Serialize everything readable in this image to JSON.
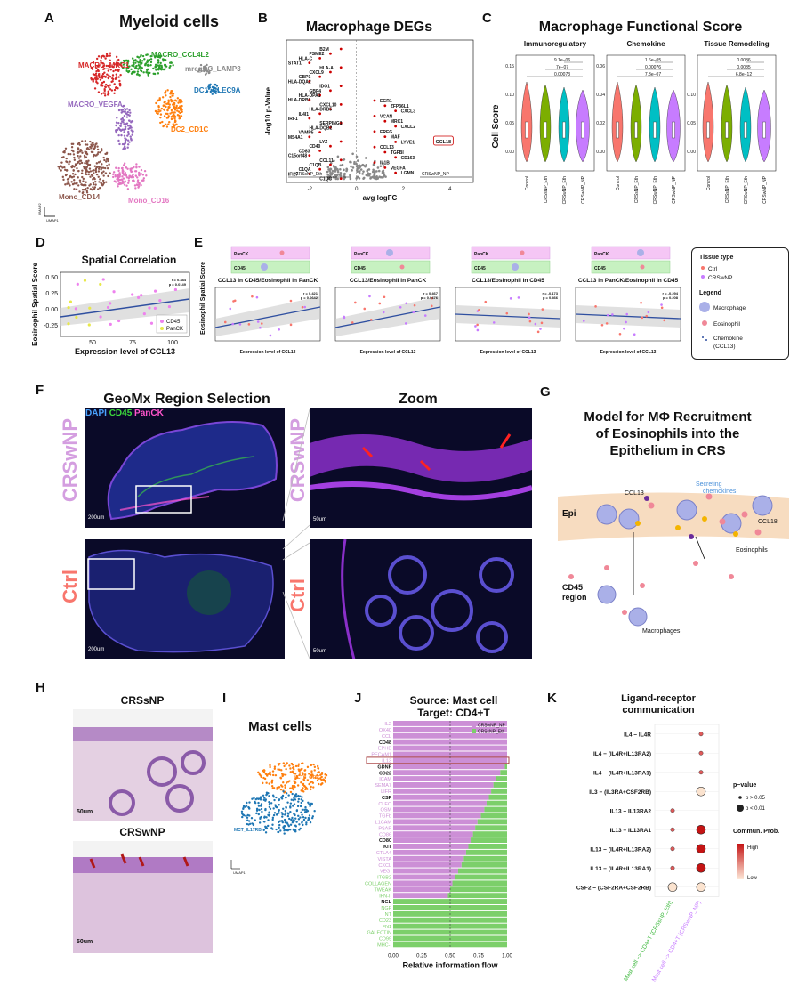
{
  "panels": {
    "A": {
      "label": "A",
      "title": "Myeloid cells",
      "clusters": [
        {
          "name": "MACRO_MRC1",
          "color": "#d62728"
        },
        {
          "name": "MACRO_CCL4L2",
          "color": "#2ca02c"
        },
        {
          "name": "mregDC_LAMP3",
          "color": "#8c8c8c"
        },
        {
          "name": "DC1_CLEC9A",
          "color": "#1f77b4"
        },
        {
          "name": "MACRO_VEGFA",
          "color": "#9467bd"
        },
        {
          "name": "DC2_CD1C",
          "color": "#ff7f0e"
        },
        {
          "name": "Mono_CD16",
          "color": "#e377c2"
        },
        {
          "name": "Mono_CD14",
          "color": "#8c564b"
        }
      ],
      "axis_x": "UMAP1",
      "axis_y": "UMAP2"
    },
    "B": {
      "label": "B",
      "title": "Macrophage DEGs",
      "xlabel": "avg logFC",
      "ylabel": "-log10 p-Value",
      "xticks": [
        "-2",
        "0",
        "2",
        "4"
      ],
      "left_arrow": "CRSsNP_Eth",
      "right_arrow": "CRSwNP_NP",
      "genes_left": [
        "B2M",
        "PSME2",
        "HLA-C",
        "STAT1",
        "HLA-A",
        "CXCL9",
        "GBP1",
        "HLA-DQA2",
        "IDO1",
        "GBP4",
        "HLA-DPA1",
        "HLA-DRB1",
        "CXCL10",
        "HLA-DRB5",
        "IL4I1",
        "IRF1",
        "SERPING1",
        "HLA-DQB2",
        "VAMP5",
        "MS4A1",
        "LYZ",
        "CD40",
        "CD83",
        "C15orf48",
        "CCL11",
        "C1QB",
        "C1QA",
        "IFI27",
        "C1QC"
      ],
      "genes_right": [
        "EGR1",
        "ZFP36L1",
        "CXCL3",
        "VCAN",
        "MRC1",
        "CXCL2",
        "EREG",
        "MAF",
        "LYVE1",
        "CCL13",
        "TGFBI",
        "CD163",
        "IL1B",
        "VEGFA",
        "LGMN"
      ],
      "highlight": "CCL18",
      "highlight2": "CCL13"
    },
    "C": {
      "label": "C",
      "title": "Macrophage Functional Score",
      "ylabel": "Cell Score",
      "groups": [
        "Control",
        "CRSsNP_Eth",
        "CRSwNP_Eth",
        "CRSwNP_NP"
      ],
      "colors": [
        "#f8766d",
        "#7cae00",
        "#00bfc4",
        "#c77cff"
      ],
      "subplots": [
        {
          "name": "Immunoregulatory",
          "yticks": [
            "0.00",
            "0.05",
            "0.10",
            "0.15"
          ],
          "pvals": [
            "9.1e−06",
            "7e−07",
            "0.00073"
          ]
        },
        {
          "name": "Chemokine",
          "yticks": [
            "0.00",
            "0.02",
            "0.04",
            "0.06"
          ],
          "pvals": [
            "1.6e−05",
            "0.00076",
            "7.3e−07"
          ]
        },
        {
          "name": "Tissue Remodeling",
          "yticks": [
            "0.00",
            "0.05",
            "0.10"
          ],
          "pvals": [
            "0.0036",
            "0.0085",
            "6.8e−12"
          ]
        }
      ]
    },
    "D": {
      "label": "D",
      "title": "Spatial Correlation",
      "ylabel": "Eosinophil Spatial Score",
      "xlabel": "Expression level of CCL13",
      "xticks": [
        "50",
        "75",
        "100"
      ],
      "yticks": [
        "0.50",
        "0.25",
        "0.00",
        "-0.25"
      ],
      "stats": "r = 0.384\np = 0.0149",
      "legend": [
        {
          "name": "CD45",
          "color": "#ee82ee"
        },
        {
          "name": "PanCK",
          "color": "#e8e84a"
        }
      ]
    },
    "E": {
      "label": "E",
      "subplots": [
        {
          "title": "CCL13 in CD45/Eosinophil in PanCK",
          "stats": "r = 0.421\np = 0.0642",
          "slope": "up"
        },
        {
          "title": "CCL13/Eosinophil in PanCK",
          "stats": "r = 0.467\np = 0.0476",
          "slope": "up"
        },
        {
          "title": "CCL13/Eosinophil in CD45",
          "stats": "r = -0.173\np = 0.466",
          "slope": "down"
        },
        {
          "title": "CCL13 in PanCK/Eosinophil in CD45",
          "stats": "r = -0.294\np = 0.208",
          "slope": "down"
        }
      ],
      "ylabel": "Eosinophil Spatial Score",
      "xlabel": "Expression level of CCL13",
      "compartments": [
        "PanCK",
        "CD45"
      ],
      "legend": {
        "tissue_title": "Tissue type",
        "items": [
          {
            "name": "Ctrl",
            "color": "#f8766d"
          },
          {
            "name": "CRSwNP",
            "color": "#c77cff"
          }
        ],
        "legend_title": "Legend",
        "cells": [
          "Macrophage",
          "Eosinophil",
          "Chemokine\n(CCL13)"
        ]
      }
    },
    "F": {
      "label": "F",
      "title_left": "GeoMx Region Selection",
      "title_right": "Zoom",
      "channels": [
        {
          "name": "DAPI",
          "color": "#4aa3ff"
        },
        {
          "name": "CD45",
          "color": "#3cdc3c"
        },
        {
          "name": "PanCK",
          "color": "#ff55cc"
        }
      ],
      "rows": [
        "CRSwNP",
        "Ctrl"
      ],
      "scale_big": "200um",
      "scale_small": "50um"
    },
    "G": {
      "label": "G",
      "title": "Model for MΦ Recruitment\nof Eosinophils into the\nEpithelium in CRS",
      "labels": {
        "epi": "Epi",
        "ccl13": "CCL13",
        "secreting": "Secreting\nchemokines",
        "ccl18": "CCL18",
        "eos": "Eosinophils",
        "cd45": "CD45\nregion",
        "macro": "Macrophages"
      }
    },
    "H": {
      "label": "H",
      "top": "CRSsNP",
      "bottom": "CRSwNP",
      "scale": "50um"
    },
    "I": {
      "label": "I",
      "title": "Mast cells",
      "clusters": [
        {
          "name": "MCTC_CTSG",
          "color": "#ff7f0e"
        },
        {
          "name": "MCT_IL17RB",
          "color": "#1f77b4"
        }
      ],
      "axis_x": "UMAP1",
      "axis_y": "UMAP2"
    },
    "J": {
      "label": "J",
      "title": "Source: Mast cell\nTarget: CD4+T",
      "xlabel": "Relative information flow",
      "xticks": [
        "0.00",
        "0.25",
        "0.50",
        "0.75",
        "1.00"
      ],
      "legend": [
        {
          "name": "CRSwNP_NP",
          "color": "#cc8fd6"
        },
        {
          "name": "CRSsNP_Eth",
          "color": "#7ccf6a"
        }
      ],
      "highlight": "IL13",
      "pathways": [
        {
          "name": "IL2",
          "v": 1.0,
          "c": "#cc8fd6"
        },
        {
          "name": "OX40",
          "v": 1.0,
          "c": "#cc8fd6"
        },
        {
          "name": "CCL",
          "v": 1.0,
          "c": "#cc8fd6"
        },
        {
          "name": "CD48",
          "v": 1.0,
          "c": "#111111"
        },
        {
          "name": "EPHB",
          "v": 1.0,
          "c": "#cc8fd6"
        },
        {
          "name": "PECAM1",
          "v": 1.0,
          "c": "#cc8fd6"
        },
        {
          "name": "IL13",
          "v": 1.0,
          "c": "#cc8fd6"
        },
        {
          "name": "GDNF",
          "v": 0.98,
          "c": "#111111"
        },
        {
          "name": "CD22",
          "v": 0.94,
          "c": "#111111"
        },
        {
          "name": "ICAM",
          "v": 0.9,
          "c": "#cc8fd6"
        },
        {
          "name": "SEMA7",
          "v": 0.88,
          "c": "#cc8fd6"
        },
        {
          "name": "LIFR",
          "v": 0.86,
          "c": "#cc8fd6"
        },
        {
          "name": "CSF",
          "v": 0.84,
          "c": "#111111"
        },
        {
          "name": "CLEC",
          "v": 0.82,
          "c": "#cc8fd6"
        },
        {
          "name": "OSM",
          "v": 0.8,
          "c": "#cc8fd6"
        },
        {
          "name": "TGFb",
          "v": 0.77,
          "c": "#cc8fd6"
        },
        {
          "name": "L1CAM",
          "v": 0.74,
          "c": "#cc8fd6"
        },
        {
          "name": "PSAP",
          "v": 0.72,
          "c": "#cc8fd6"
        },
        {
          "name": "CD86",
          "v": 0.7,
          "c": "#cc8fd6"
        },
        {
          "name": "CD80",
          "v": 0.68,
          "c": "#111111"
        },
        {
          "name": "KIT",
          "v": 0.66,
          "c": "#111111"
        },
        {
          "name": "CTLA4",
          "v": 0.64,
          "c": "#cc8fd6"
        },
        {
          "name": "VISTA",
          "v": 0.62,
          "c": "#cc8fd6"
        },
        {
          "name": "CXCL",
          "v": 0.6,
          "c": "#cc8fd6"
        },
        {
          "name": "VEGI",
          "v": 0.57,
          "c": "#cc8fd6"
        },
        {
          "name": "ITGB2",
          "v": 0.54,
          "c": "#7ccf6a"
        },
        {
          "name": "COLLAGEN",
          "v": 0.52,
          "c": "#7ccf6a"
        },
        {
          "name": "TWEAK",
          "v": 0.5,
          "c": "#7ccf6a"
        },
        {
          "name": "IFN-II",
          "v": 0.48,
          "c": "#7ccf6a"
        },
        {
          "name": "NGL",
          "v": 0.0,
          "c": "#111111"
        },
        {
          "name": "NGF",
          "v": 0.0,
          "c": "#7ccf6a"
        },
        {
          "name": "NT",
          "v": 0.0,
          "c": "#7ccf6a"
        },
        {
          "name": "CD23",
          "v": 0.0,
          "c": "#7ccf6a"
        },
        {
          "name": "FN1",
          "v": 0.0,
          "c": "#7ccf6a"
        },
        {
          "name": "GALECTIN",
          "v": 0.0,
          "c": "#7ccf6a"
        },
        {
          "name": "CD99",
          "v": 0.0,
          "c": "#7ccf6a"
        },
        {
          "name": "MHC-I",
          "v": 0.0,
          "c": "#7ccf6a"
        }
      ]
    },
    "K": {
      "label": "K",
      "title": "Ligand-receptor\ncommunication",
      "pairs": [
        "IL4 − IL4R",
        "IL4 − (IL4R+IL13RA2)",
        "IL4 − (IL4R+IL13RA1)",
        "IL3 − (IL3RA+CSF2RB)",
        "IL13 − IL13RA2",
        "IL13 − IL13RA1",
        "IL13 − (IL4R+IL13RA2)",
        "IL13 − (IL4R+IL13RA1)",
        "CSF2 − (CSF2RA+CSF2RB)"
      ],
      "columns": [
        "Mast cell −> CD4+T (CRSsNP_Eth)",
        "Mast cell −> CD4+T (CRSwNP_NP)"
      ],
      "pvalue_title": "p−value",
      "pvalue_items": [
        "p > 0.05",
        "p < 0.01"
      ],
      "prob_title": "Commun. Prob.",
      "prob_high": "High",
      "prob_low": "Low"
    }
  }
}
